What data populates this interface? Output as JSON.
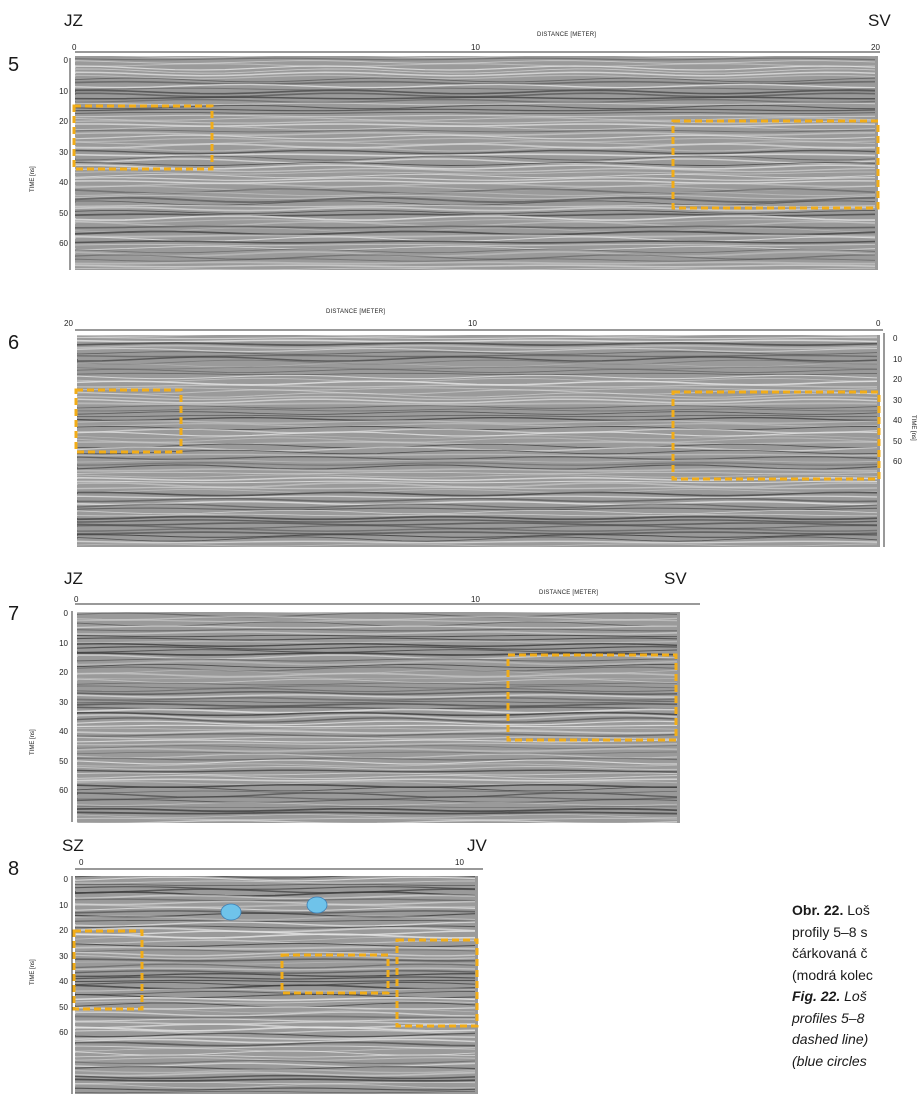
{
  "profiles": [
    {
      "id": "5",
      "dir_left": "JZ",
      "dir_right": "SV",
      "x_title": "DISTANCE [METER]",
      "x_ticks": [
        "0",
        "10",
        "20"
      ],
      "y_title": "TIME [ns]",
      "y_ticks": [
        "0",
        "10",
        "20",
        "30",
        "40",
        "50",
        "60"
      ]
    },
    {
      "id": "6",
      "dir_left": "",
      "dir_right": "",
      "x_title": "DISTANCE [METER]",
      "x_ticks": [
        "20",
        "10",
        "0"
      ],
      "y_title": "TIME [ns]",
      "y_ticks": [
        "0",
        "10",
        "20",
        "30",
        "40",
        "50",
        "60"
      ]
    },
    {
      "id": "7",
      "dir_left": "JZ",
      "dir_right": "SV",
      "x_title": "DISTANCE [METER]",
      "x_ticks": [
        "0",
        "10"
      ],
      "y_title": "TIME [ns]",
      "y_ticks": [
        "0",
        "10",
        "20",
        "30",
        "40",
        "50",
        "60"
      ]
    },
    {
      "id": "8",
      "dir_left": "SZ",
      "dir_right": "JV",
      "x_title": "",
      "x_ticks": [
        "0",
        "10"
      ],
      "y_title": "TIME [ns]",
      "y_ticks": [
        "0",
        "10",
        "20",
        "30",
        "40",
        "50",
        "60"
      ]
    }
  ],
  "colors": {
    "anomaly_box": "#f2ad18",
    "marker": "#6fc3ea",
    "marker_stroke": "#3d7fb5"
  },
  "caption": {
    "cz_label": "Obr. 22.",
    "cz_lines": [
      " Loš",
      "profily 5–8 s",
      "čárkovaná č",
      "(modrá kolec"
    ],
    "en_label": "Fig. 22.",
    "en_lines": [
      " Loš",
      "profiles 5–8",
      "dashed line)",
      "(blue circles"
    ]
  }
}
